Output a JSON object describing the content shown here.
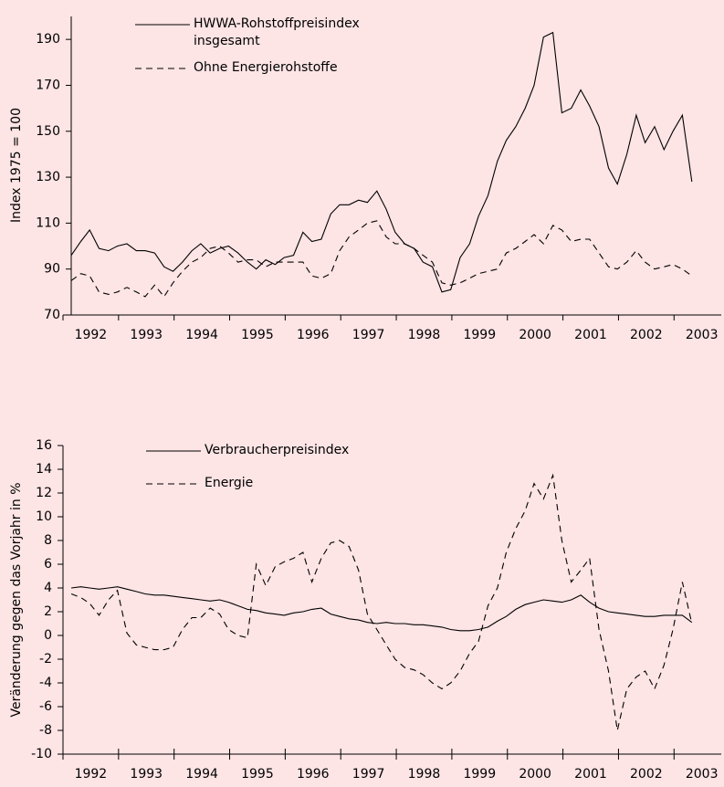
{
  "chart_data": [
    {
      "type": "line",
      "ylabel": "Index 1975 = 100",
      "xlim": [
        1992,
        2003.85
      ],
      "ylim": [
        70,
        200
      ],
      "yticks": [
        70,
        90,
        110,
        130,
        150,
        170,
        190
      ],
      "xticks": [
        {
          "value": 1992,
          "label": "1992"
        },
        {
          "value": 1993,
          "label": "1993"
        },
        {
          "value": 1994,
          "label": "1994"
        },
        {
          "value": 1995,
          "label": "1995"
        },
        {
          "value": 1996,
          "label": "1996"
        },
        {
          "value": 1997,
          "label": "1997"
        },
        {
          "value": 1998,
          "label": "1998"
        },
        {
          "value": 1999,
          "label": "1999"
        },
        {
          "value": 2000,
          "label": "2000"
        },
        {
          "value": 2001,
          "label": "2001"
        },
        {
          "value": 2002,
          "label": "2002"
        },
        {
          "value": 2003,
          "label": "2003"
        }
      ],
      "x": [
        1992.15,
        1992.32,
        1992.48,
        1992.65,
        1992.82,
        1992.98,
        1993.15,
        1993.32,
        1993.48,
        1993.65,
        1993.82,
        1993.98,
        1994.15,
        1994.32,
        1994.48,
        1994.65,
        1994.82,
        1994.98,
        1995.15,
        1995.32,
        1995.48,
        1995.65,
        1995.82,
        1995.98,
        1996.15,
        1996.32,
        1996.48,
        1996.65,
        1996.82,
        1996.98,
        1997.15,
        1997.32,
        1997.48,
        1997.65,
        1997.82,
        1997.98,
        1998.15,
        1998.32,
        1998.48,
        1998.65,
        1998.82,
        1998.98,
        1999.15,
        1999.32,
        1999.48,
        1999.65,
        1999.82,
        1999.98,
        2000.15,
        2000.32,
        2000.48,
        2000.65,
        2000.82,
        2000.98,
        2001.15,
        2001.32,
        2001.48,
        2001.65,
        2001.82,
        2001.98,
        2002.15,
        2002.32,
        2002.48,
        2002.65,
        2002.82,
        2002.98,
        2003.15,
        2003.32
      ],
      "series": [
        {
          "name": "HWWA-Rohstoffpreisindex insgesamt",
          "color": "#000000",
          "style": "solid",
          "values": [
            96,
            102,
            107,
            99,
            98,
            100,
            101,
            98,
            98,
            97,
            91,
            89,
            93,
            98,
            101,
            97,
            99,
            100,
            97,
            93,
            90,
            94,
            92,
            95,
            96,
            106,
            102,
            103,
            114,
            118,
            118,
            120,
            119,
            124,
            116,
            106,
            101,
            99,
            93,
            91,
            80,
            81,
            95,
            101,
            113,
            122,
            137,
            146,
            152,
            160,
            170,
            191,
            193,
            158,
            160,
            168,
            161,
            152,
            134,
            127,
            140,
            157,
            145,
            152,
            142,
            150,
            157,
            128
          ]
        },
        {
          "name": "Ohne Energierohstoffe",
          "color": "#000000",
          "style": "dashed",
          "values": [
            85,
            88,
            87,
            80,
            79,
            80,
            82,
            80,
            78,
            83,
            78,
            84,
            89,
            93,
            95,
            99,
            100,
            97,
            93,
            94,
            94,
            91,
            93,
            93,
            93,
            93,
            87,
            86,
            88,
            98,
            104,
            107,
            110,
            111,
            104,
            101,
            101,
            99,
            96,
            93,
            84,
            83,
            84,
            86,
            88,
            89,
            90,
            97,
            99,
            102,
            105,
            101,
            109,
            107,
            102,
            103,
            103,
            97,
            91,
            90,
            93,
            98,
            93,
            90,
            91,
            92,
            90,
            87
          ]
        }
      ]
    },
    {
      "type": "line",
      "ylabel": "Veränderung gegen das Vorjahr in %",
      "xlim": [
        1992,
        2003.85
      ],
      "ylim": [
        -10,
        16
      ],
      "yticks": [
        -10,
        -8,
        -6,
        -4,
        -2,
        0,
        2,
        4,
        6,
        8,
        10,
        12,
        14,
        16
      ],
      "xticks": [
        {
          "value": 1992,
          "label": "1992"
        },
        {
          "value": 1993,
          "label": "1993"
        },
        {
          "value": 1994,
          "label": "1994"
        },
        {
          "value": 1995,
          "label": "1995"
        },
        {
          "value": 1996,
          "label": "1996"
        },
        {
          "value": 1997,
          "label": "1997"
        },
        {
          "value": 1998,
          "label": "1998"
        },
        {
          "value": 1999,
          "label": "1999"
        },
        {
          "value": 2000,
          "label": "2000"
        },
        {
          "value": 2001,
          "label": "2001"
        },
        {
          "value": 2002,
          "label": "2002"
        },
        {
          "value": 2003,
          "label": "2003"
        }
      ],
      "x": [
        1992.15,
        1992.32,
        1992.48,
        1992.65,
        1992.82,
        1992.98,
        1993.15,
        1993.32,
        1993.48,
        1993.65,
        1993.82,
        1993.98,
        1994.15,
        1994.32,
        1994.48,
        1994.65,
        1994.82,
        1994.98,
        1995.15,
        1995.32,
        1995.48,
        1995.65,
        1995.82,
        1995.98,
        1996.15,
        1996.32,
        1996.48,
        1996.65,
        1996.82,
        1996.98,
        1997.15,
        1997.32,
        1997.48,
        1997.65,
        1997.82,
        1997.98,
        1998.15,
        1998.32,
        1998.48,
        1998.65,
        1998.82,
        1998.98,
        1999.15,
        1999.32,
        1999.48,
        1999.65,
        1999.82,
        1999.98,
        2000.15,
        2000.32,
        2000.48,
        2000.65,
        2000.82,
        2000.98,
        2001.15,
        2001.32,
        2001.48,
        2001.65,
        2001.82,
        2001.98,
        2002.15,
        2002.32,
        2002.48,
        2002.65,
        2002.82,
        2002.98,
        2003.15,
        2003.32
      ],
      "series": [
        {
          "name": "Verbraucherpreisindex",
          "color": "#000000",
          "style": "solid",
          "values": [
            4.0,
            4.1,
            4.0,
            3.9,
            4.0,
            4.1,
            3.9,
            3.7,
            3.5,
            3.4,
            3.4,
            3.3,
            3.2,
            3.1,
            3.0,
            2.9,
            3.0,
            2.8,
            2.5,
            2.2,
            2.1,
            1.9,
            1.8,
            1.7,
            1.9,
            2.0,
            2.2,
            2.3,
            1.8,
            1.6,
            1.4,
            1.3,
            1.1,
            1.0,
            1.1,
            1.0,
            1.0,
            0.9,
            0.9,
            0.8,
            0.7,
            0.5,
            0.4,
            0.4,
            0.5,
            0.7,
            1.2,
            1.6,
            2.2,
            2.6,
            2.8,
            3.0,
            2.9,
            2.8,
            3.0,
            3.4,
            2.8,
            2.3,
            2.0,
            1.9,
            1.8,
            1.7,
            1.6,
            1.6,
            1.7,
            1.7,
            1.7,
            1.1
          ]
        },
        {
          "name": "Energie",
          "color": "#000000",
          "style": "dashed",
          "values": [
            3.5,
            3.2,
            2.7,
            1.7,
            3.0,
            3.8,
            0.2,
            -0.8,
            -1.0,
            -1.2,
            -1.2,
            -1.0,
            0.5,
            1.5,
            1.5,
            2.3,
            1.8,
            0.5,
            0,
            -0.2,
            6.0,
            4.2,
            5.8,
            6.2,
            6.5,
            7.0,
            4.5,
            6.5,
            7.8,
            8.0,
            7.5,
            5.5,
            1.8,
            0.5,
            -0.8,
            -2.0,
            -2.7,
            -2.9,
            -3.3,
            -4.0,
            -4.5,
            -4.0,
            -3.0,
            -1.5,
            -0.5,
            2.5,
            4.0,
            7.0,
            9.0,
            10.5,
            12.8,
            11.5,
            13.5,
            8.0,
            4.5,
            5.5,
            6.5,
            0.5,
            -3.0,
            -8.0,
            -4.5,
            -3.5,
            -3.0,
            -4.5,
            -2.5,
            0.5,
            4.5,
            1.0
          ]
        }
      ]
    }
  ]
}
